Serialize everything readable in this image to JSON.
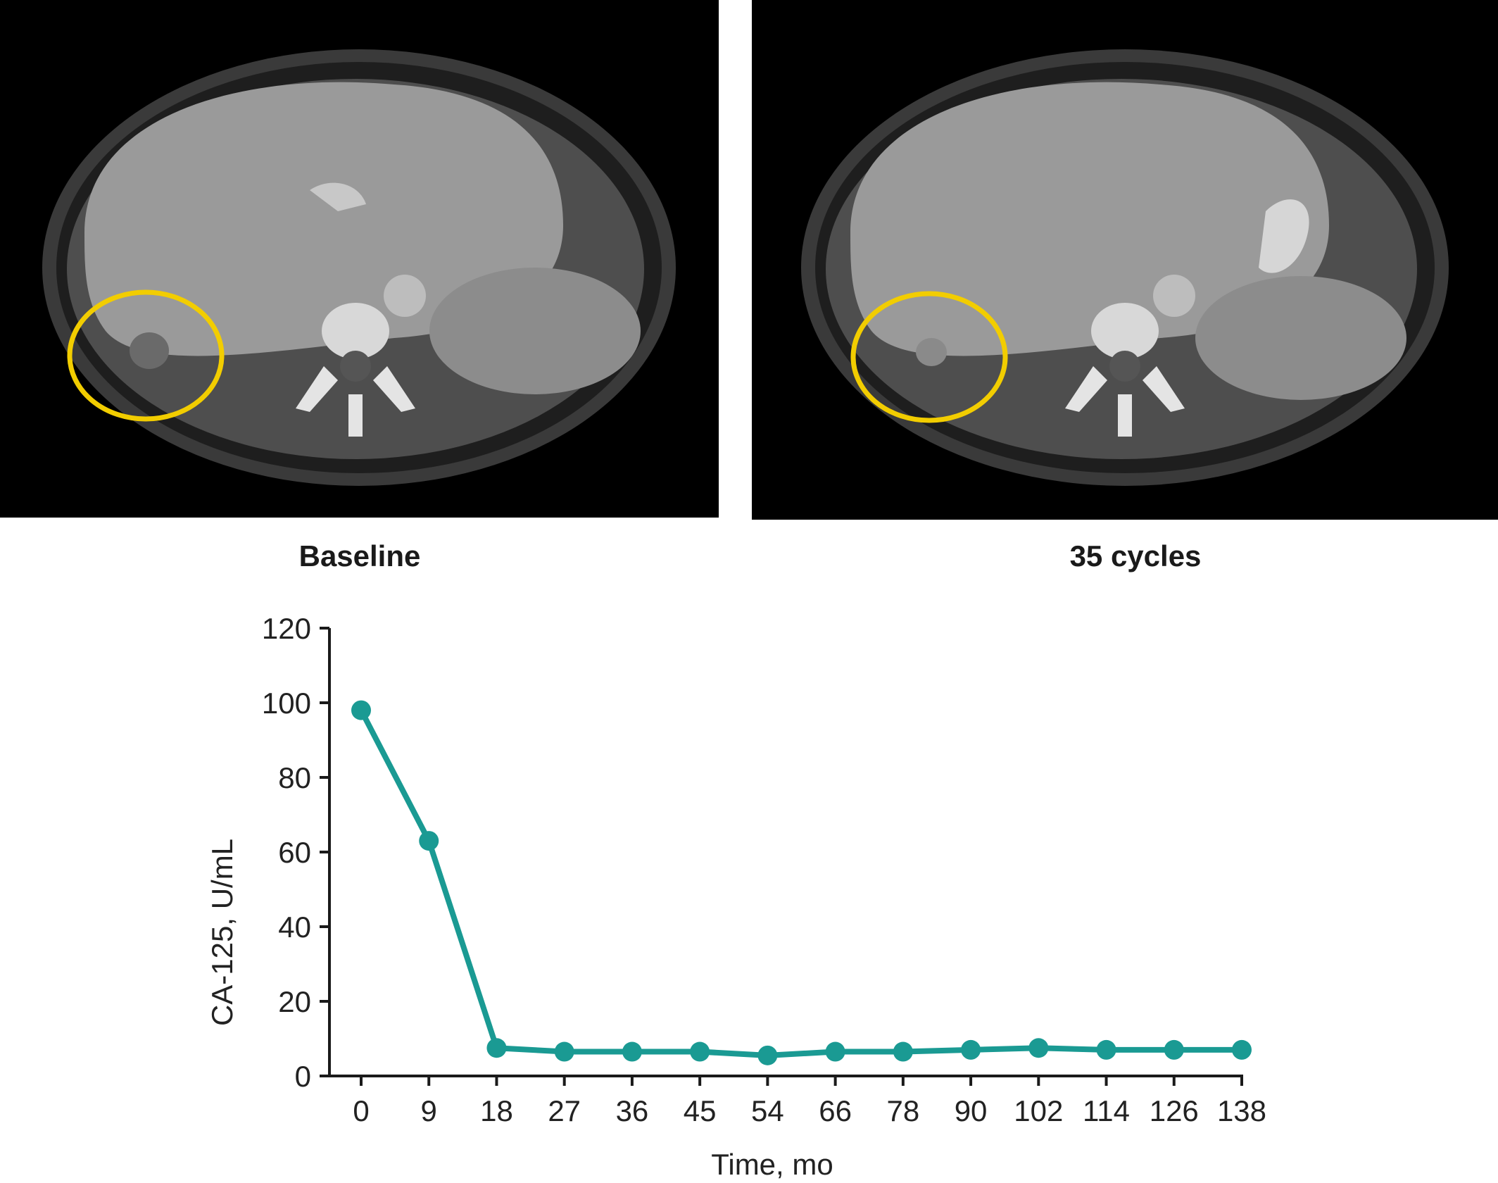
{
  "captions": {
    "left": "Baseline",
    "right": "35 cycles"
  },
  "colors": {
    "series": "#1a9a93",
    "highlight_circle": "#f2cd00",
    "axis": "#1a1a1a",
    "scan_bg": "#000000"
  },
  "chart_data": {
    "type": "line",
    "x": [
      "0",
      "9",
      "18",
      "27",
      "36",
      "45",
      "54",
      "66",
      "78",
      "90",
      "102",
      "114",
      "126",
      "138"
    ],
    "series": [
      {
        "values": [
          98,
          63,
          7.5,
          6.5,
          6.5,
          6.5,
          5.5,
          6.5,
          6.5,
          7,
          7.5,
          7,
          7,
          7
        ]
      }
    ],
    "title": "",
    "xlabel": "Time, mo",
    "ylabel": "CA-125, U/mL",
    "ylim": [
      0,
      120
    ],
    "yticks": [
      "0",
      "20",
      "40",
      "60",
      "80",
      "100",
      "120"
    ],
    "grid": false
  }
}
